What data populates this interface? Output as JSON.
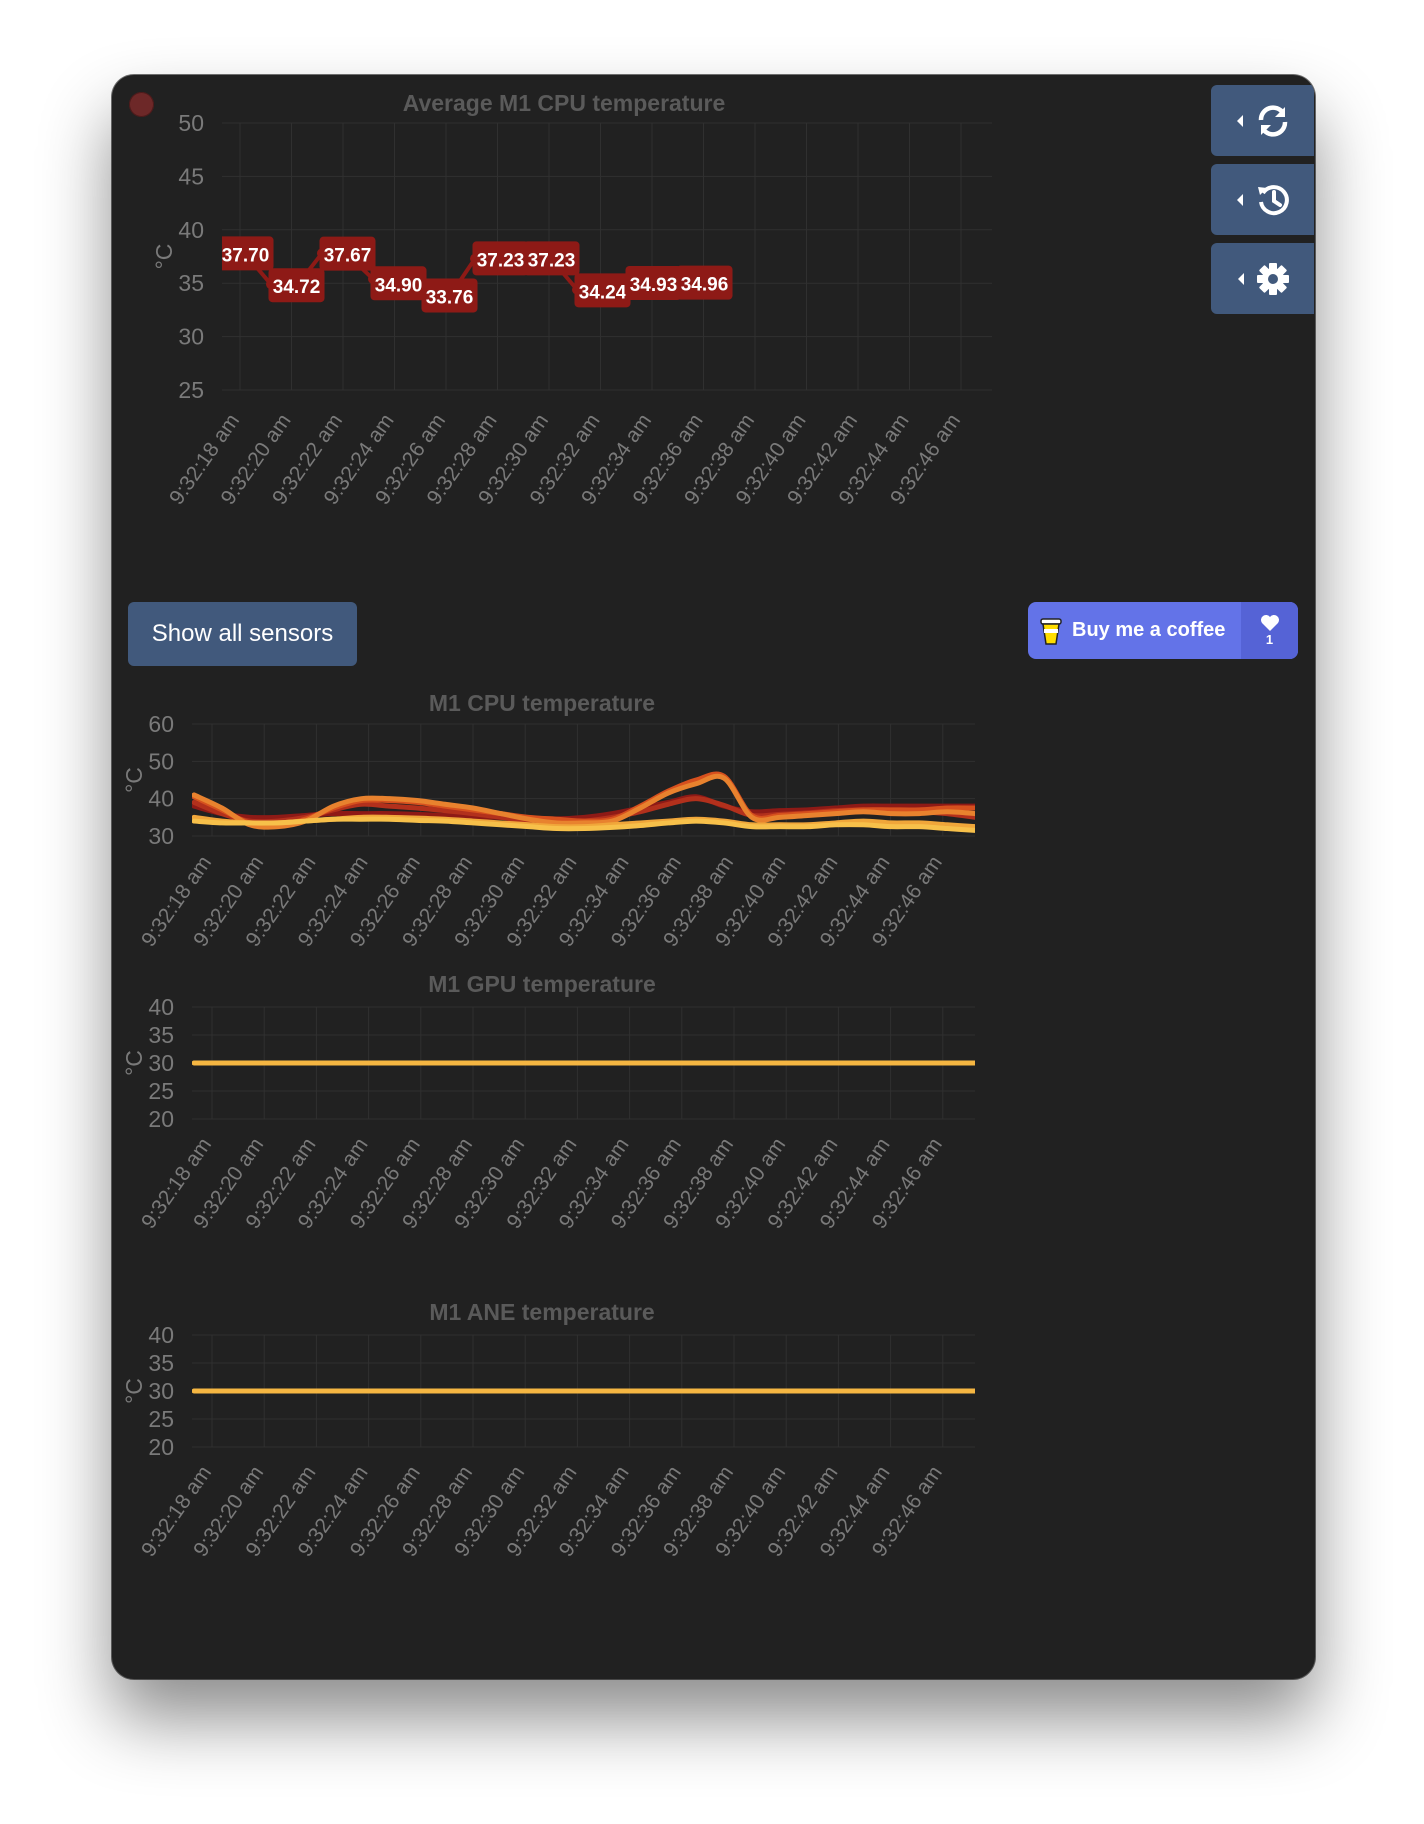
{
  "buttons": {
    "refresh": "refresh-icon",
    "history": "history-icon",
    "settings": "gear-icon",
    "show_all": "Show all sensors",
    "coffee_label": "Buy me a coffee",
    "coffee_count": "1"
  },
  "colors": {
    "window_bg": "#212121",
    "button_bg": "#41597c",
    "coffee_bg": "#6373e8",
    "avg_line": "#8e1a16",
    "cpu_series": [
      "#8e1a16",
      "#b2301c",
      "#d6501e",
      "#e8822e",
      "#f0a63a",
      "#f7c04a"
    ],
    "gpu_line": "#f5b642",
    "ane_line": "#f5b642"
  },
  "x_labels": [
    "9:32:18 am",
    "9:32:20 am",
    "9:32:22 am",
    "9:32:24 am",
    "9:32:26 am",
    "9:32:28 am",
    "9:32:30 am",
    "9:32:32 am",
    "9:32:34 am",
    "9:32:36 am",
    "9:32:38 am",
    "9:32:40 am",
    "9:32:42 am",
    "9:32:44 am",
    "9:32:46 am"
  ],
  "chart_data": [
    {
      "type": "line",
      "title": "Average M1 CPU temperature",
      "ylabel": "°C",
      "ylim": [
        25,
        50
      ],
      "yticks": [
        50,
        45,
        40,
        35,
        30,
        25
      ],
      "grid": true,
      "x": [
        "9:32:18 am",
        "9:32:19 am",
        "9:32:20 am",
        "9:32:21 am",
        "9:32:22 am",
        "9:32:23 am",
        "9:32:24 am",
        "9:32:25 am",
        "9:32:26 am",
        "9:32:27 am",
        "9:32:28 am",
        "9:32:29 am",
        "9:32:30 am",
        "9:32:31 am",
        "9:32:32 am",
        "9:32:33 am",
        "9:32:34 am",
        "9:32:35 am",
        "9:32:36 am",
        "9:32:37 am",
        "9:32:38 am",
        "9:32:39 am",
        "9:32:40 am",
        "9:32:41 am",
        "9:32:42 am",
        "9:32:43 am",
        "9:32:44 am",
        "9:32:45 am",
        "9:32:46 am"
      ],
      "series": [
        {
          "values": [
            38.2,
            37.7,
            34.9,
            34.72,
            37.8,
            37.67,
            35.4,
            34.9,
            34.3,
            33.76,
            37.3,
            37.23,
            37.3,
            37.23,
            34.4,
            34.24,
            34.6,
            34.93,
            34.95,
            34.96,
            null,
            null,
            null,
            null,
            null,
            null,
            null,
            null,
            null
          ],
          "labels": [
            null,
            "37.70",
            null,
            "34.72",
            null,
            "37.67",
            null,
            "34.90",
            null,
            "33.76",
            null,
            "37.23",
            null,
            "37.23",
            null,
            "34.24",
            null,
            "34.93",
            null,
            "34.96",
            null,
            null,
            null,
            null,
            null,
            null,
            null,
            null,
            null
          ]
        }
      ]
    },
    {
      "type": "line",
      "title": "M1 CPU temperature",
      "ylabel": "°C",
      "ylim": [
        30,
        60
      ],
      "yticks": [
        60,
        50,
        40,
        30
      ],
      "grid": true,
      "series": [
        {
          "values": [
            38,
            36,
            35,
            35,
            35.5,
            36,
            36,
            36,
            35.8,
            35.5,
            35.2,
            35,
            34.8,
            34.6,
            35,
            36,
            37.5,
            39,
            40.5,
            38,
            36.5,
            36.8,
            37,
            37.5,
            38,
            38,
            38,
            38,
            38
          ]
        },
        {
          "values": [
            39,
            36,
            34,
            34,
            35,
            37,
            38.5,
            38,
            37.5,
            36.8,
            36,
            35,
            34,
            33.8,
            34,
            35,
            36.5,
            38.5,
            40,
            38.2,
            35.5,
            35.8,
            36.2,
            36.8,
            37,
            36.5,
            36.5,
            36,
            35
          ]
        },
        {
          "values": [
            40.5,
            37,
            33.5,
            33,
            34.5,
            37.5,
            39.5,
            39.5,
            39,
            38,
            37,
            36,
            35,
            34.5,
            34,
            34.5,
            38,
            42,
            45,
            46,
            35.5,
            35.5,
            36,
            36.5,
            37,
            37,
            37,
            37.5,
            37.5
          ]
        },
        {
          "values": [
            41,
            37.5,
            33,
            32.5,
            34,
            38,
            40,
            40,
            39.5,
            38.5,
            37.5,
            36,
            34.5,
            33.5,
            33.5,
            34,
            37.5,
            41.5,
            44,
            45.5,
            35,
            35,
            35.5,
            36,
            36.5,
            36,
            36,
            36.5,
            36
          ]
        },
        {
          "values": [
            35,
            34,
            33.5,
            33.5,
            34,
            34.5,
            35,
            35,
            34.8,
            34.5,
            34,
            33.5,
            33,
            32.5,
            32.5,
            33,
            33.5,
            34,
            34.5,
            34,
            33,
            33,
            33,
            33.5,
            34,
            33.5,
            33.5,
            33,
            32.5
          ]
        },
        {
          "values": [
            34,
            33.5,
            33.5,
            33.5,
            34,
            34.5,
            34.5,
            34.5,
            34.2,
            34,
            33.5,
            33,
            32.5,
            32,
            32,
            32.3,
            32.8,
            33.5,
            34,
            33.5,
            32.5,
            32.5,
            32.5,
            33,
            33,
            32.5,
            32.5,
            32,
            31.5
          ]
        }
      ]
    },
    {
      "type": "line",
      "title": "M1 GPU temperature",
      "ylabel": "°C",
      "ylim": [
        20,
        40
      ],
      "yticks": [
        40,
        35,
        30,
        25,
        20
      ],
      "grid": true,
      "series": [
        {
          "values": [
            30,
            30,
            30,
            30,
            30,
            30,
            30,
            30,
            30,
            30,
            30,
            30,
            30,
            30,
            30,
            30,
            30,
            30,
            30,
            30,
            30,
            30,
            30,
            30,
            30,
            30,
            30,
            30,
            30
          ]
        }
      ]
    },
    {
      "type": "line",
      "title": "M1 ANE temperature",
      "ylabel": "°C",
      "ylim": [
        20,
        40
      ],
      "yticks": [
        40,
        35,
        30,
        25,
        20
      ],
      "grid": true,
      "series": [
        {
          "values": [
            30,
            30,
            30,
            30,
            30,
            30,
            30,
            30,
            30,
            30,
            30,
            30,
            30,
            30,
            30,
            30,
            30,
            30,
            30,
            30,
            30,
            30,
            30,
            30,
            30,
            30,
            30,
            30,
            30
          ]
        }
      ]
    }
  ]
}
